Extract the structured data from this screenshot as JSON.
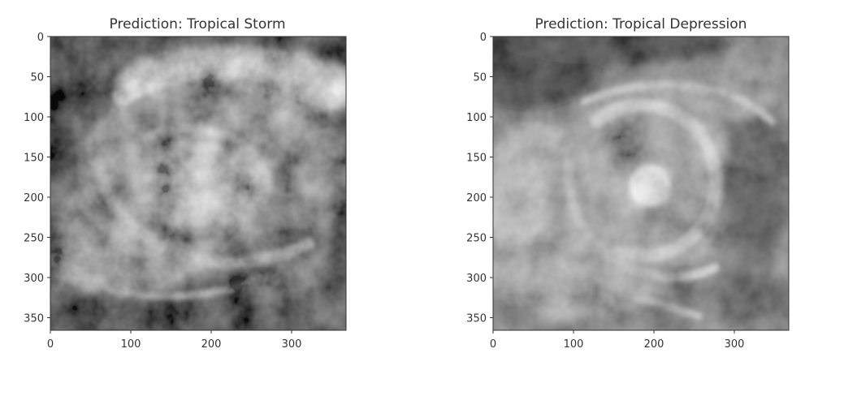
{
  "panels": [
    {
      "title": "Prediction: Tropical Storm",
      "xticks": [
        "0",
        "100",
        "200",
        "300"
      ],
      "yticks": [
        "0",
        "50",
        "100",
        "150",
        "200",
        "250",
        "300",
        "350"
      ]
    },
    {
      "title": "Prediction: Tropical Depression",
      "xticks": [
        "0",
        "100",
        "200",
        "300"
      ],
      "yticks": [
        "0",
        "50",
        "100",
        "150",
        "200",
        "250",
        "300",
        "350"
      ]
    }
  ],
  "colors": {
    "background": "#ffffff",
    "text": "#333333",
    "axis": "#333333"
  }
}
